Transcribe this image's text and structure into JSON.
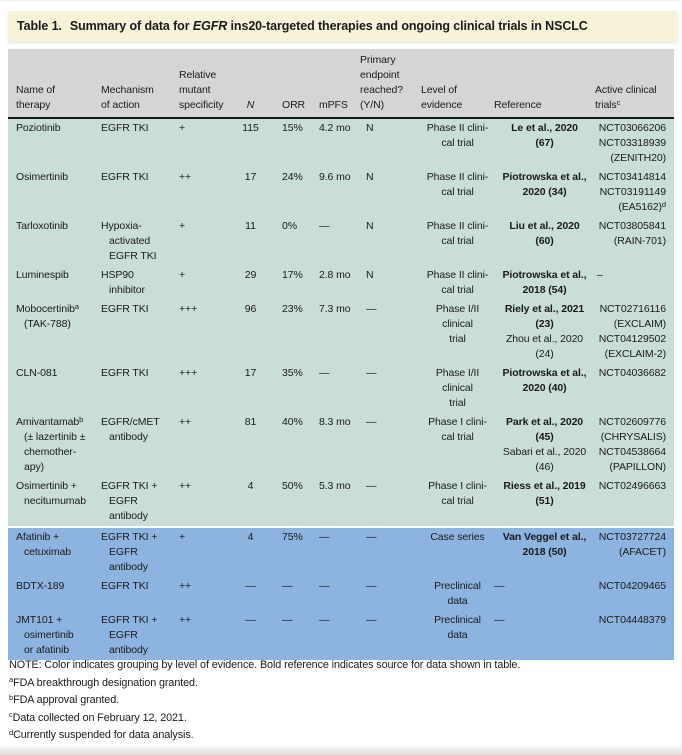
{
  "title": {
    "label": "Table 1.",
    "pre": "Summary of data for ",
    "italic": "EGFR",
    "post": " ins20-targeted therapies and ongoing clinical trials in NSCLC"
  },
  "colors": {
    "title_bg": "#f7f3d9",
    "header_bg": "#d5d5d5",
    "trial_evidence_row": "#c9ded7",
    "case_preclinical_row": "#8db4e0",
    "text": "#1a1a1a"
  },
  "table": {
    "columns": [
      {
        "key": "therapy",
        "lines": [
          "Name of",
          "therapy"
        ]
      },
      {
        "key": "mechanism",
        "lines": [
          "Mechanism",
          "of action"
        ]
      },
      {
        "key": "specificity",
        "lines": [
          "Relative",
          "mutant",
          "specificity"
        ]
      },
      {
        "key": "n",
        "lines": [
          "N"
        ],
        "italic": true
      },
      {
        "key": "orr",
        "lines": [
          "ORR"
        ]
      },
      {
        "key": "mpfs",
        "lines": [
          "mPFS"
        ]
      },
      {
        "key": "endpoint",
        "lines": [
          "Primary",
          "endpoint",
          "reached?",
          "(Y/N)"
        ]
      },
      {
        "key": "evidence",
        "lines": [
          "Level of",
          "evidence"
        ]
      },
      {
        "key": "reference",
        "lines": [
          "Reference"
        ]
      },
      {
        "key": "trials",
        "lines": [
          "Active clinical",
          "trials^c"
        ]
      }
    ],
    "rows": [
      {
        "color_group": "green",
        "bold_ref_lines": 2,
        "cells": [
          [
            "Poziotinib"
          ],
          [
            "EGFR TKI"
          ],
          [
            "+"
          ],
          [
            "115"
          ],
          [
            "15%"
          ],
          [
            "4.2 mo"
          ],
          [
            "N"
          ],
          [
            "Phase II clini-",
            "cal trial"
          ],
          [
            "Le et al., 2020",
            "(67)"
          ],
          [
            "NCT03066206",
            "NCT03318939",
            "(ZENITH20)"
          ]
        ]
      },
      {
        "color_group": "green",
        "bold_ref_lines": 2,
        "cells": [
          [
            "Osimertinib"
          ],
          [
            "EGFR TKI"
          ],
          [
            "++"
          ],
          [
            "17"
          ],
          [
            "24%"
          ],
          [
            "9.6 mo"
          ],
          [
            "N"
          ],
          [
            "Phase II clini-",
            "cal trial"
          ],
          [
            "Piotrowska et al.,",
            "2020 (34)"
          ],
          [
            "NCT03414814",
            "NCT03191149",
            "(EA5162)^d"
          ]
        ]
      },
      {
        "color_group": "green",
        "bold_ref_lines": 2,
        "cells": [
          [
            "Tarloxotinib"
          ],
          [
            "Hypoxia-",
            "activated",
            "EGFR TKI"
          ],
          [
            "+"
          ],
          [
            "11"
          ],
          [
            "0%"
          ],
          [
            "—"
          ],
          [
            "N"
          ],
          [
            "Phase II clini-",
            "cal trial"
          ],
          [
            "Liu et al., 2020",
            "(60)"
          ],
          [
            "NCT03805841",
            "(RAIN-701)"
          ]
        ]
      },
      {
        "color_group": "green",
        "bold_ref_lines": 2,
        "cells": [
          [
            "Luminespib"
          ],
          [
            "HSP90",
            "inhibitor"
          ],
          [
            "+"
          ],
          [
            "29"
          ],
          [
            "17%"
          ],
          [
            "2.8 mo"
          ],
          [
            "N"
          ],
          [
            "Phase II clini-",
            "cal trial"
          ],
          [
            "Piotrowska et al.,",
            "2018 (54)"
          ],
          [
            "–"
          ]
        ]
      },
      {
        "color_group": "green",
        "bold_ref_lines": 2,
        "cells": [
          [
            "Mobocertinib^a",
            "(TAK-788)"
          ],
          [
            "EGFR TKI"
          ],
          [
            "+++"
          ],
          [
            "96"
          ],
          [
            "23%"
          ],
          [
            "7.3 mo"
          ],
          [
            "—"
          ],
          [
            "Phase I/II",
            "clinical",
            "trial"
          ],
          [
            "Riely et al., 2021",
            "(23)",
            "Zhou et al., 2020",
            "(24)"
          ],
          [
            "NCT02716116",
            "(EXCLAIM)",
            "NCT04129502",
            "(EXCLAIM-2)"
          ]
        ]
      },
      {
        "color_group": "green",
        "bold_ref_lines": 2,
        "cells": [
          [
            "CLN-081"
          ],
          [
            "EGFR TKI"
          ],
          [
            "+++"
          ],
          [
            "17"
          ],
          [
            "35%"
          ],
          [
            "—"
          ],
          [
            "—"
          ],
          [
            "Phase I/II",
            "clinical",
            "trial"
          ],
          [
            "Piotrowska et al.,",
            "2020 (40)"
          ],
          [
            "NCT04036682"
          ]
        ]
      },
      {
        "color_group": "green",
        "bold_ref_lines": 2,
        "cells": [
          [
            "Amivantamab^b",
            "(± lazertinib ±",
            "chemother-",
            "apy)"
          ],
          [
            "EGFR/cMET",
            "antibody"
          ],
          [
            "++"
          ],
          [
            "81"
          ],
          [
            "40%"
          ],
          [
            "8.3 mo"
          ],
          [
            "—"
          ],
          [
            "Phase I clini-",
            "cal trial"
          ],
          [
            "Park et al., 2020",
            "(45)",
            "Sabari et al., 2020",
            "(46)"
          ],
          [
            "NCT02609776",
            "(CHRYSALIS)",
            "NCT04538664",
            "(PAPILLON)"
          ]
        ]
      },
      {
        "color_group": "green",
        "bold_ref_lines": 2,
        "cells": [
          [
            "Osimertinib +",
            "necitumumab"
          ],
          [
            "EGFR TKI +",
            "EGFR",
            "antibody"
          ],
          [
            "++"
          ],
          [
            "4"
          ],
          [
            "50%"
          ],
          [
            "5.3 mo"
          ],
          [
            "—"
          ],
          [
            "Phase I clini-",
            "cal trial"
          ],
          [
            "Riess et al., 2019",
            "(51)"
          ],
          [
            "NCT02496663"
          ]
        ]
      },
      {
        "color_group": "blue",
        "bold_ref_lines": 2,
        "cells": [
          [
            "Afatinib +",
            "cetuximab"
          ],
          [
            "EGFR TKI +",
            "EGFR",
            "antibody"
          ],
          [
            "+"
          ],
          [
            "4"
          ],
          [
            "75%"
          ],
          [
            "—"
          ],
          [
            "—"
          ],
          [
            "Case series"
          ],
          [
            "Van Veggel et al.,",
            "2018 (50)"
          ],
          [
            "NCT03727724",
            "(AFACET)"
          ]
        ]
      },
      {
        "color_group": "blue",
        "bold_ref_lines": 0,
        "cells": [
          [
            "BDTX-189"
          ],
          [
            "EGFR TKI"
          ],
          [
            "++"
          ],
          [
            "—"
          ],
          [
            "—"
          ],
          [
            "—"
          ],
          [
            "—"
          ],
          [
            "Preclinical",
            "data"
          ],
          [
            "—"
          ],
          [
            "NCT04209465"
          ]
        ]
      },
      {
        "color_group": "blue",
        "bold_ref_lines": 0,
        "cells": [
          [
            "JMT101 +",
            "osimertinib",
            "or afatinib"
          ],
          [
            "EGFR TKI +",
            "EGFR",
            "antibody"
          ],
          [
            "++"
          ],
          [
            "—"
          ],
          [
            "—"
          ],
          [
            "—"
          ],
          [
            "—"
          ],
          [
            "Preclinical",
            "data"
          ],
          [
            "—"
          ],
          [
            "NCT04448379"
          ]
        ]
      }
    ]
  },
  "footnotes": [
    "NOTE: Color indicates grouping by level of evidence. Bold reference indicates source for data shown in table.",
    "^aFDA breakthrough designation granted.",
    "^bFDA approval granted.",
    "^cData collected on February 12, 2021.",
    "^dCurrently suspended for data analysis."
  ]
}
